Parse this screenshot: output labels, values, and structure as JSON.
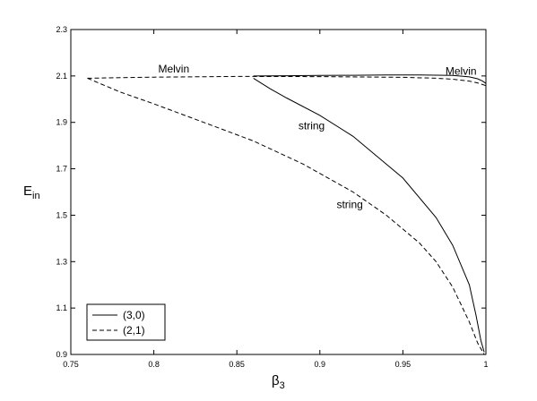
{
  "chart_data": {
    "type": "line",
    "xlabel": "β",
    "xlabel_sub": "3",
    "ylabel": "E",
    "ylabel_sub": "in",
    "xlim": [
      0.75,
      1.0
    ],
    "ylim": [
      0.9,
      2.3
    ],
    "xticks": [
      "0.75",
      "0.8",
      "0.85",
      "0.9",
      "0.95",
      "1"
    ],
    "yticks": [
      "0.9",
      "1.1",
      "1.3",
      "1.5",
      "1.7",
      "1.9",
      "2.1",
      "2.3"
    ],
    "grid": false,
    "legend": "bottom-left",
    "series": [
      {
        "name": "(3,0)",
        "style": "solid",
        "branches": [
          {
            "x": [
              0.86,
              0.88,
              0.9,
              0.92,
              0.94,
              0.96,
              0.98,
              0.99,
              0.995,
              0.998,
              1.0
            ],
            "y": [
              2.1,
              2.101,
              2.102,
              2.103,
              2.104,
              2.104,
              2.102,
              2.096,
              2.088,
              2.078,
              2.068
            ]
          },
          {
            "x": [
              0.86,
              0.87,
              0.88,
              0.9,
              0.92,
              0.95,
              0.97,
              0.98,
              0.99,
              0.994,
              0.997,
              0.999
            ],
            "y": [
              2.09,
              2.045,
              2.005,
              1.93,
              1.84,
              1.66,
              1.49,
              1.37,
              1.2,
              1.07,
              0.96,
              0.91
            ]
          }
        ]
      },
      {
        "name": "(2,1)",
        "style": "dashed",
        "branches": [
          {
            "x": [
              0.76,
              0.8,
              0.85,
              0.9,
              0.95,
              0.97,
              0.98,
              0.99,
              0.995,
              1.0
            ],
            "y": [
              2.09,
              2.095,
              2.098,
              2.097,
              2.094,
              2.09,
              2.086,
              2.078,
              2.07,
              2.058
            ]
          },
          {
            "x": [
              0.76,
              0.78,
              0.8,
              0.83,
              0.86,
              0.89,
              0.92,
              0.94,
              0.96,
              0.97,
              0.98,
              0.99,
              0.995,
              0.999
            ],
            "y": [
              2.09,
              2.03,
              1.98,
              1.9,
              1.82,
              1.72,
              1.6,
              1.5,
              1.38,
              1.3,
              1.19,
              1.04,
              0.95,
              0.9
            ]
          }
        ]
      }
    ],
    "annotations": [
      {
        "text": "Melvin",
        "x": 0.812,
        "y": 2.115
      },
      {
        "text": "Melvin",
        "x": 0.985,
        "y": 2.105
      },
      {
        "text": "string",
        "x": 0.895,
        "y": 1.87
      },
      {
        "text": "string",
        "x": 0.918,
        "y": 1.53
      }
    ]
  }
}
